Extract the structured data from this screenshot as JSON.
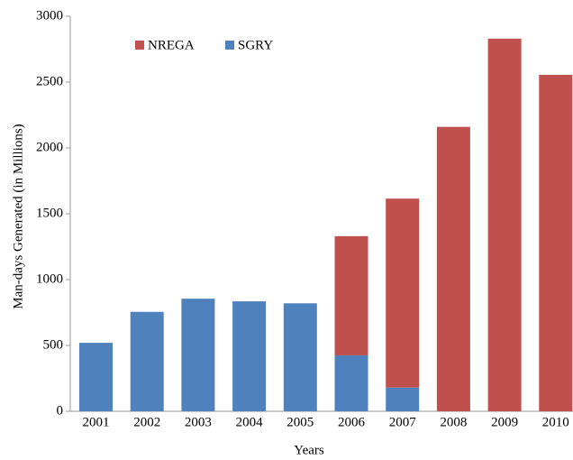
{
  "chart_data": {
    "type": "stacked_bar",
    "x_label": "Years",
    "y_label": "Man-days Generated (in Millions)",
    "categories": [
      "2001",
      "2002",
      "2003",
      "2004",
      "2005",
      "2006",
      "2007",
      "2008",
      "2009",
      "2010"
    ],
    "series": [
      {
        "name": "NREGA",
        "color": "#c0504d",
        "values": [
          0,
          0,
          0,
          0,
          0,
          905,
          1435,
          2160,
          2830,
          2555
        ]
      },
      {
        "name": "SGRY",
        "color": "#4f81bd",
        "values": [
          520,
          755,
          855,
          835,
          820,
          425,
          180,
          0,
          0,
          0
        ]
      }
    ],
    "ylim": [
      0,
      3000
    ],
    "yticks": [
      0,
      500,
      1000,
      1500,
      2000,
      2500,
      3000
    ],
    "grid": false
  }
}
